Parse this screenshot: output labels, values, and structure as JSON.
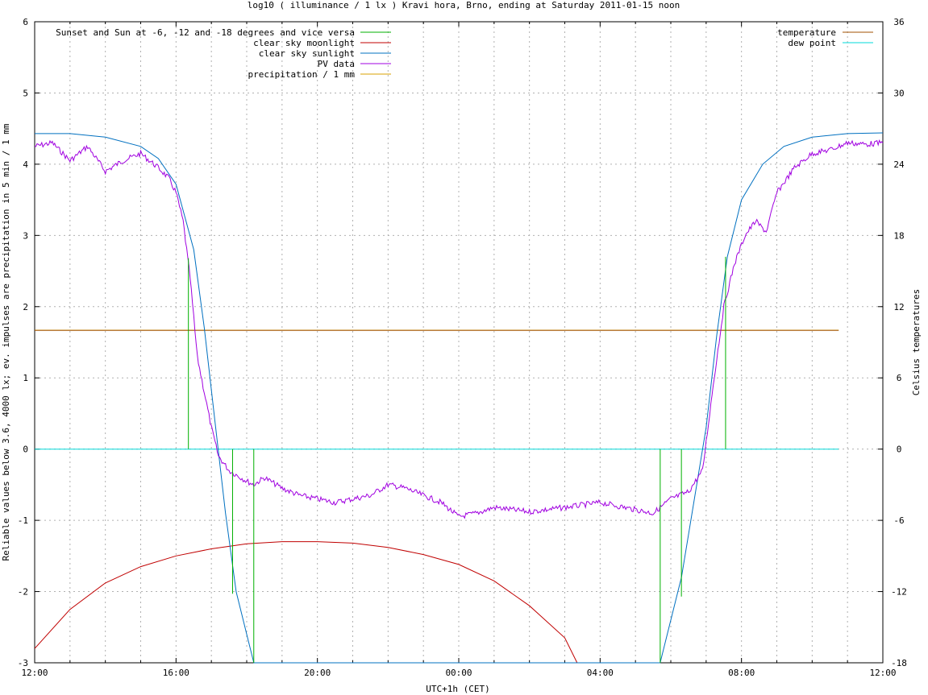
{
  "chart_data": {
    "type": "line",
    "title": "log10 ( illuminance / 1 lx ) Kravi hora, Brno, ending at Saturday 2011-01-15 noon",
    "xlabel": "UTC+1h (CET)",
    "ylabel": "Reliable values below 3.6, 4000 lx; ev. impulses are precipitation in 5 min / 1 mm",
    "y2label": "Celsius temperatures",
    "x_ticks": [
      "12:00",
      "16:00",
      "20:00",
      "00:00",
      "04:00",
      "08:00",
      "12:00"
    ],
    "x_range_hours": [
      0,
      24
    ],
    "ylim": [
      -3,
      6
    ],
    "y_ticks": [
      "-3",
      "-2",
      "-1",
      "0",
      "1",
      "2",
      "3",
      "4",
      "5",
      "6"
    ],
    "y2lim": [
      -18,
      36
    ],
    "y2_ticks": [
      "-18",
      "-12",
      "-6",
      "0",
      "6",
      "12",
      "18",
      "24",
      "30",
      "36"
    ],
    "grid": true,
    "legend_left": [
      "Sunset and Sun at -6, -12 and -18 degrees and vice versa",
      "clear sky moonlight",
      "clear sky sunlight",
      "PV data",
      "precipitation / 1 mm"
    ],
    "legend_right": [
      "temperature",
      "dew point"
    ],
    "colors": {
      "sun_markers": "#00b000",
      "moonlight": "#c00000",
      "sunlight": "#0070c0",
      "pv": "#a000e0",
      "precipitation": "#d8a000",
      "temperature": "#a05000",
      "dew_point": "#00d8d8",
      "grid": "#b0b0b0"
    },
    "sun_markers": [
      {
        "x": 4.35,
        "y": 2.68
      },
      {
        "x": 5.6,
        "y": -2.03
      },
      {
        "x": 6.2,
        "y": -3.0
      },
      {
        "x": 17.7,
        "y": -3.0
      },
      {
        "x": 18.3,
        "y": -2.07
      },
      {
        "x": 19.55,
        "y": 2.7
      }
    ],
    "series": [
      {
        "name": "clear sky moonlight",
        "points": [
          [
            0,
            -2.8
          ],
          [
            1,
            -2.25
          ],
          [
            2,
            -1.88
          ],
          [
            3,
            -1.65
          ],
          [
            4,
            -1.5
          ],
          [
            5,
            -1.4
          ],
          [
            6,
            -1.33
          ],
          [
            7,
            -1.3
          ],
          [
            8,
            -1.3
          ],
          [
            9,
            -1.32
          ],
          [
            10,
            -1.38
          ],
          [
            11,
            -1.48
          ],
          [
            12,
            -1.62
          ],
          [
            13,
            -1.85
          ],
          [
            14,
            -2.2
          ],
          [
            15,
            -2.65
          ],
          [
            15.35,
            -3.0
          ]
        ]
      },
      {
        "name": "clear sky sunlight",
        "points": [
          [
            0,
            4.43
          ],
          [
            1,
            4.43
          ],
          [
            2,
            4.38
          ],
          [
            3,
            4.25
          ],
          [
            3.5,
            4.08
          ],
          [
            4,
            3.72
          ],
          [
            4.5,
            2.8
          ],
          [
            4.8,
            1.7
          ],
          [
            5.1,
            0.4
          ],
          [
            5.4,
            -0.9
          ],
          [
            5.7,
            -2.0
          ],
          [
            6.0,
            -2.6
          ],
          [
            6.2,
            -3.0
          ],
          [
            17.7,
            -3.0
          ],
          [
            17.95,
            -2.5
          ],
          [
            18.3,
            -1.8
          ],
          [
            18.7,
            -0.6
          ],
          [
            19.0,
            0.3
          ],
          [
            19.3,
            1.6
          ],
          [
            19.6,
            2.7
          ],
          [
            20.0,
            3.5
          ],
          [
            20.6,
            4.0
          ],
          [
            21.2,
            4.25
          ],
          [
            22.0,
            4.38
          ],
          [
            23.0,
            4.43
          ],
          [
            24.0,
            4.44
          ]
        ]
      },
      {
        "name": "PV data",
        "points": [
          [
            0,
            4.25
          ],
          [
            0.5,
            4.3
          ],
          [
            1.0,
            4.05
          ],
          [
            1.5,
            4.25
          ],
          [
            2.0,
            3.9
          ],
          [
            2.5,
            4.05
          ],
          [
            3.0,
            4.15
          ],
          [
            3.5,
            3.95
          ],
          [
            3.8,
            3.8
          ],
          [
            4.0,
            3.6
          ],
          [
            4.2,
            3.2
          ],
          [
            4.4,
            2.4
          ],
          [
            4.6,
            1.3
          ],
          [
            4.8,
            0.8
          ],
          [
            5.0,
            0.3
          ],
          [
            5.2,
            -0.1
          ],
          [
            5.5,
            -0.3
          ],
          [
            6.0,
            -0.45
          ],
          [
            6.2,
            -0.5
          ],
          [
            6.5,
            -0.4
          ],
          [
            7.0,
            -0.55
          ],
          [
            7.5,
            -0.65
          ],
          [
            8.0,
            -0.7
          ],
          [
            8.5,
            -0.75
          ],
          [
            9.0,
            -0.7
          ],
          [
            9.5,
            -0.65
          ],
          [
            10.0,
            -0.5
          ],
          [
            10.5,
            -0.55
          ],
          [
            11.0,
            -0.65
          ],
          [
            11.5,
            -0.75
          ],
          [
            12.0,
            -0.95
          ],
          [
            12.5,
            -0.9
          ],
          [
            13.0,
            -0.82
          ],
          [
            14.0,
            -0.88
          ],
          [
            15.0,
            -0.82
          ],
          [
            16.0,
            -0.75
          ],
          [
            17.0,
            -0.85
          ],
          [
            17.5,
            -0.9
          ],
          [
            18.0,
            -0.7
          ],
          [
            18.5,
            -0.6
          ],
          [
            18.9,
            -0.3
          ],
          [
            19.2,
            0.9
          ],
          [
            19.5,
            2.0
          ],
          [
            19.8,
            2.6
          ],
          [
            20.1,
            3.0
          ],
          [
            20.4,
            3.2
          ],
          [
            20.7,
            3.05
          ],
          [
            21.0,
            3.6
          ],
          [
            21.5,
            3.95
          ],
          [
            22.0,
            4.15
          ],
          [
            22.5,
            4.2
          ],
          [
            23.0,
            4.3
          ],
          [
            23.5,
            4.28
          ],
          [
            24.0,
            4.3
          ]
        ]
      },
      {
        "name": "precipitation / 1 mm",
        "points": [
          [
            0,
            1.67
          ],
          [
            22.75,
            1.67
          ]
        ]
      },
      {
        "name": "temperature",
        "points": [
          [
            0,
            10.0
          ],
          [
            22.75,
            10.0
          ]
        ]
      },
      {
        "name": "dew point",
        "points": [
          [
            0,
            0.0
          ],
          [
            22.75,
            0.0
          ]
        ]
      }
    ]
  }
}
